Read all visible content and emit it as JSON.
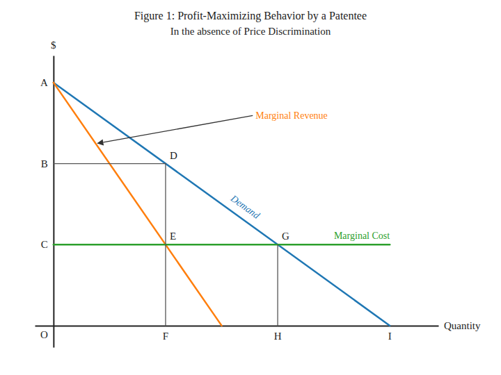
{
  "chart_data": {
    "type": "line",
    "title": "Figure 1:  Profit-Maximizing Behavior by a Patentee",
    "subtitle": "In the absence of Price Discrimination",
    "xlabel": "Quantity",
    "ylabel": "$",
    "xlim": [
      -0.5,
      10.3
    ],
    "ylim": [
      -0.8,
      10.0
    ],
    "xticks": [],
    "yticks": [],
    "tick_labels": false,
    "grid": false,
    "series": [
      {
        "name": "Demand",
        "x": [
          0,
          9
        ],
        "values": [
          9,
          0
        ]
      },
      {
        "name": "Marginal Revenue",
        "x": [
          0,
          4.5
        ],
        "values": [
          9,
          0
        ]
      },
      {
        "name": "Marginal Cost",
        "x": [
          0,
          9
        ],
        "values": [
          3.0,
          3.0
        ]
      },
      {
        "x": [
          3,
          3
        ],
        "values": [
          0,
          6.0
        ]
      },
      {
        "x": [
          0,
          3
        ],
        "values": [
          6.0,
          6.0
        ]
      },
      {
        "x": [
          6,
          6
        ],
        "values": [
          0,
          3.0
        ]
      }
    ],
    "annotations": [
      {
        "text": "A",
        "x": 0,
        "y": 9
      },
      {
        "text": "B",
        "x": 0,
        "y": 6.0
      },
      {
        "text": "C",
        "x": 0,
        "y": 3.0
      },
      {
        "text": "O",
        "x": 0,
        "y": 0
      },
      {
        "text": "D",
        "x": 3,
        "y": 6.0
      },
      {
        "text": "E",
        "x": 3,
        "y": 3.0
      },
      {
        "text": "F",
        "x": 3,
        "y": 0
      },
      {
        "text": "G",
        "x": 6,
        "y": 3.0
      },
      {
        "text": "H",
        "x": 6,
        "y": 0
      },
      {
        "text": "I",
        "x": 9,
        "y": 0
      }
    ]
  }
}
